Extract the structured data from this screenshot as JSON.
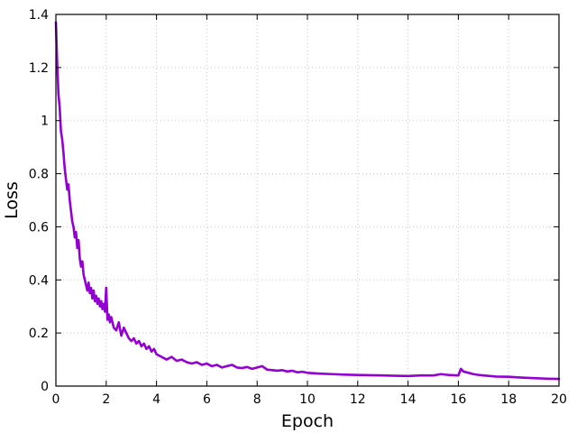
{
  "chart_data": {
    "type": "line",
    "title": "",
    "xlabel": "Epoch",
    "ylabel": "Loss",
    "xlim": [
      0,
      20
    ],
    "ylim": [
      0,
      1.4
    ],
    "xticks": [
      "0",
      "2",
      "4",
      "6",
      "8",
      "10",
      "12",
      "14",
      "16",
      "18",
      "20"
    ],
    "yticks": [
      "0",
      "0.2",
      "0.4",
      "0.6",
      "0.8",
      "1",
      "1.2",
      "1.4"
    ],
    "grid": true,
    "series": [
      {
        "color": "#9400d3",
        "x": [
          0,
          0.05,
          0.1,
          0.15,
          0.2,
          0.25,
          0.3,
          0.35,
          0.4,
          0.45,
          0.5,
          0.55,
          0.6,
          0.65,
          0.7,
          0.75,
          0.8,
          0.85,
          0.9,
          0.95,
          1.0,
          1.05,
          1.1,
          1.15,
          1.2,
          1.25,
          1.3,
          1.35,
          1.4,
          1.45,
          1.5,
          1.55,
          1.6,
          1.65,
          1.7,
          1.75,
          1.8,
          1.85,
          1.9,
          1.95,
          2.0,
          2.05,
          2.1,
          2.15,
          2.2,
          2.3,
          2.4,
          2.5,
          2.6,
          2.7,
          2.8,
          2.9,
          3.0,
          3.1,
          3.2,
          3.3,
          3.4,
          3.5,
          3.6,
          3.7,
          3.8,
          3.9,
          4.0,
          4.2,
          4.4,
          4.6,
          4.8,
          5.0,
          5.2,
          5.4,
          5.6,
          5.8,
          6.0,
          6.2,
          6.4,
          6.6,
          6.8,
          7.0,
          7.2,
          7.4,
          7.6,
          7.8,
          8.0,
          8.2,
          8.4,
          8.6,
          8.8,
          9.0,
          9.2,
          9.4,
          9.6,
          9.8,
          10.0,
          10.5,
          11.0,
          11.5,
          12.0,
          12.5,
          13.0,
          13.5,
          14.0,
          14.5,
          15.0,
          15.3,
          15.6,
          16.0,
          16.1,
          16.2,
          16.4,
          16.6,
          16.8,
          17.0,
          17.5,
          18.0,
          18.5,
          19.0,
          19.5,
          20.0
        ],
        "values": [
          1.37,
          1.22,
          1.1,
          1.05,
          0.96,
          0.93,
          0.88,
          0.82,
          0.78,
          0.74,
          0.76,
          0.7,
          0.66,
          0.62,
          0.6,
          0.56,
          0.58,
          0.52,
          0.55,
          0.48,
          0.45,
          0.47,
          0.42,
          0.4,
          0.38,
          0.36,
          0.39,
          0.35,
          0.37,
          0.33,
          0.36,
          0.32,
          0.34,
          0.31,
          0.33,
          0.3,
          0.32,
          0.29,
          0.31,
          0.28,
          0.37,
          0.25,
          0.27,
          0.24,
          0.26,
          0.22,
          0.21,
          0.24,
          0.19,
          0.22,
          0.2,
          0.18,
          0.17,
          0.18,
          0.16,
          0.17,
          0.15,
          0.16,
          0.14,
          0.15,
          0.13,
          0.14,
          0.12,
          0.11,
          0.1,
          0.11,
          0.095,
          0.1,
          0.09,
          0.085,
          0.09,
          0.08,
          0.085,
          0.075,
          0.08,
          0.07,
          0.075,
          0.08,
          0.07,
          0.068,
          0.072,
          0.065,
          0.07,
          0.075,
          0.062,
          0.06,
          0.058,
          0.06,
          0.055,
          0.058,
          0.052,
          0.054,
          0.05,
          0.047,
          0.045,
          0.043,
          0.042,
          0.041,
          0.04,
          0.039,
          0.038,
          0.04,
          0.04,
          0.045,
          0.042,
          0.04,
          0.065,
          0.055,
          0.05,
          0.045,
          0.042,
          0.04,
          0.036,
          0.035,
          0.032,
          0.03,
          0.028,
          0.027
        ]
      }
    ]
  }
}
